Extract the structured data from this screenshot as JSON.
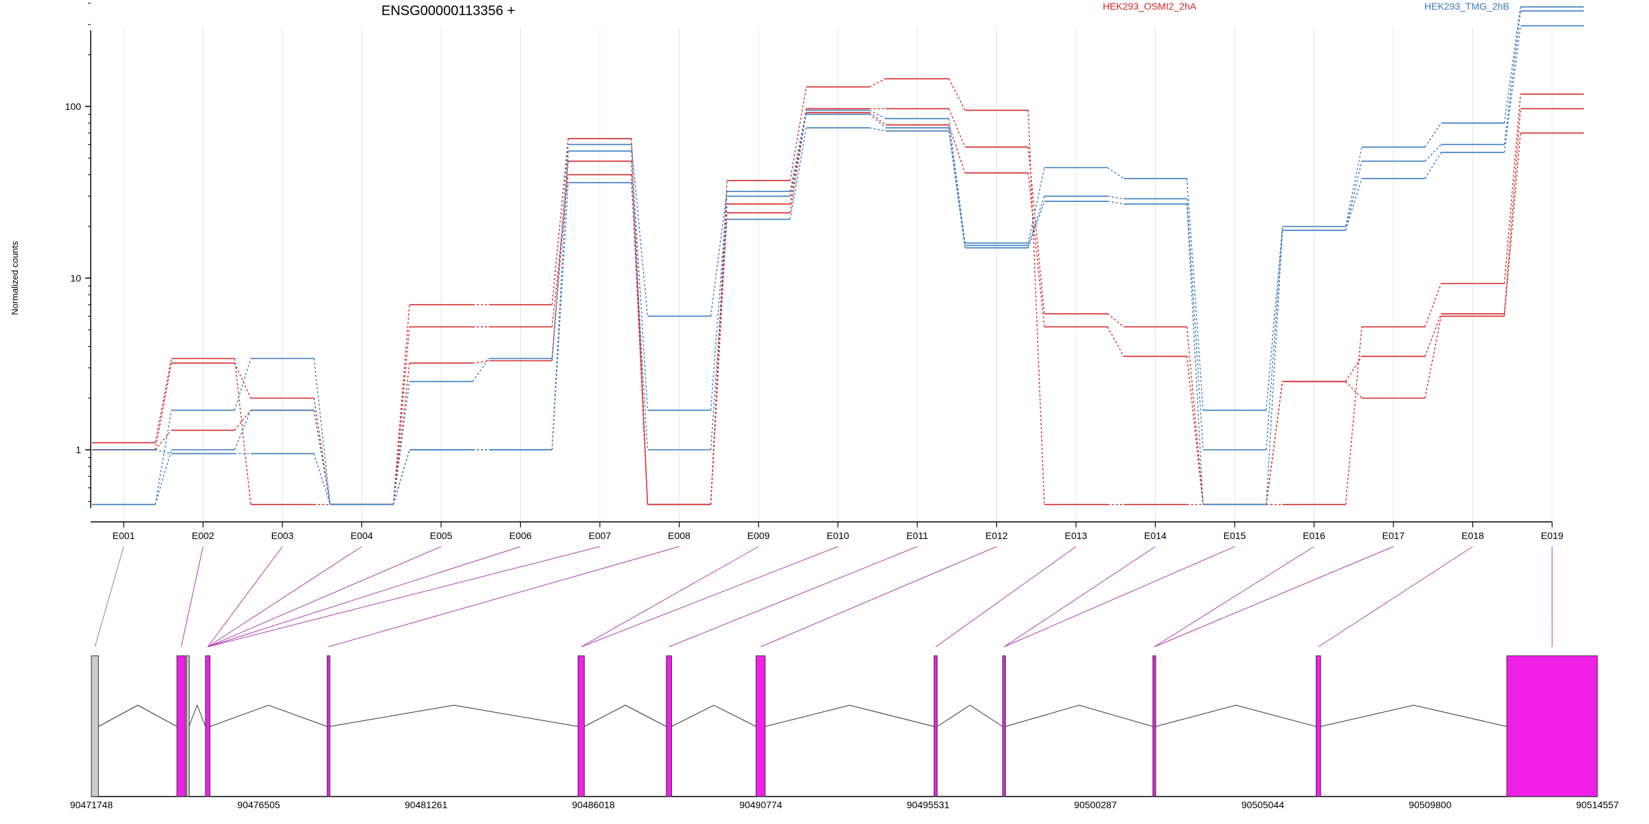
{
  "chart_data": {
    "type": "line",
    "title": "ENSG00000113356 +",
    "ylabel": "Normalized counts",
    "yscale": "log",
    "ylim": [
      0.5,
      500
    ],
    "yticks": [
      "1",
      "10",
      "100"
    ],
    "xlabel": "",
    "grid": "vertical",
    "legend_placement": "top",
    "categories": [
      "E001",
      "E002",
      "E003",
      "E004",
      "E005",
      "E006",
      "E007",
      "E008",
      "E009",
      "E010",
      "E011",
      "E012",
      "E013",
      "E014",
      "E015",
      "E016",
      "E017",
      "E018",
      "E019"
    ],
    "series": [
      {
        "name": "HEK293_OSMI2_2hA",
        "color": "#d62728",
        "values": [
          1.1,
          3.4,
          0.48,
          0.48,
          7.0,
          7.0,
          65,
          0.48,
          37,
          130,
          145,
          95,
          0.48,
          0.48,
          0.48,
          0.48,
          5.2,
          9.3,
          118
        ]
      },
      {
        "name": "",
        "color": "#d62728",
        "values": [
          1.0,
          3.2,
          2.0,
          0.48,
          3.2,
          3.3,
          48,
          0.48,
          27,
          97,
          97,
          58,
          6.2,
          5.2,
          0.48,
          2.5,
          3.5,
          6.2,
          97
        ]
      },
      {
        "name": "",
        "color": "#d62728",
        "values": [
          1.0,
          1.3,
          1.7,
          0.48,
          5.2,
          5.2,
          40,
          0.48,
          24,
          92,
          78,
          41,
          5.2,
          3.5,
          0.48,
          2.5,
          2.0,
          6.0,
          70
        ]
      },
      {
        "name": "HEK293_TMG_2hB",
        "color": "#3a7bbf",
        "values": [
          0.48,
          1.7,
          3.4,
          0.48,
          2.5,
          3.4,
          60,
          6.0,
          32,
          95,
          85,
          16,
          44,
          38,
          1.7,
          20,
          58,
          80,
          380
        ]
      },
      {
        "name": "",
        "color": "#3a7bbf",
        "values": [
          0.48,
          1.0,
          1.7,
          0.48,
          1.0,
          1.0,
          55,
          1.7,
          30,
          90,
          75,
          15.5,
          30,
          29,
          1.0,
          19,
          48,
          60,
          360
        ]
      },
      {
        "name": "",
        "color": "#3a7bbf",
        "values": [
          1.0,
          0.95,
          0.95,
          0.48,
          1.0,
          1.0,
          36,
          1.0,
          22,
          75,
          72,
          15,
          28,
          27,
          0.48,
          19,
          38,
          54,
          295
        ]
      }
    ],
    "gene_model": {
      "coordinate_labels": [
        "90471748",
        "90476505",
        "90481261",
        "90486018",
        "90490774",
        "90495531",
        "90500287",
        "90505044",
        "90509800",
        "90514557"
      ],
      "range": [
        90471748,
        90514557
      ],
      "exon_color": "#f020e8",
      "intron_color": "#333333",
      "exons": [
        {
          "start": 90471748,
          "end": 90471950,
          "tested": false
        },
        {
          "start": 90474180,
          "end": 90474420,
          "tested": true
        },
        {
          "start": 90474450,
          "end": 90474520,
          "tested": false
        },
        {
          "start": 90474990,
          "end": 90475120,
          "tested": true
        },
        {
          "start": 90478450,
          "end": 90478520,
          "tested": true
        },
        {
          "start": 90485580,
          "end": 90485760,
          "tested": true
        },
        {
          "start": 90488090,
          "end": 90488240,
          "tested": true
        },
        {
          "start": 90490640,
          "end": 90490900,
          "tested": true
        },
        {
          "start": 90495700,
          "end": 90495790,
          "tested": true
        },
        {
          "start": 90497650,
          "end": 90497730,
          "tested": true
        },
        {
          "start": 90501920,
          "end": 90502000,
          "tested": true
        },
        {
          "start": 90506560,
          "end": 90506690,
          "tested": true
        },
        {
          "start": 90511980,
          "end": 90514557,
          "tested": true
        }
      ],
      "exon_links": [
        0,
        1,
        3,
        3,
        3,
        3,
        3,
        4,
        5,
        5,
        6,
        7,
        8,
        9,
        9,
        10,
        10,
        11,
        12
      ]
    }
  }
}
